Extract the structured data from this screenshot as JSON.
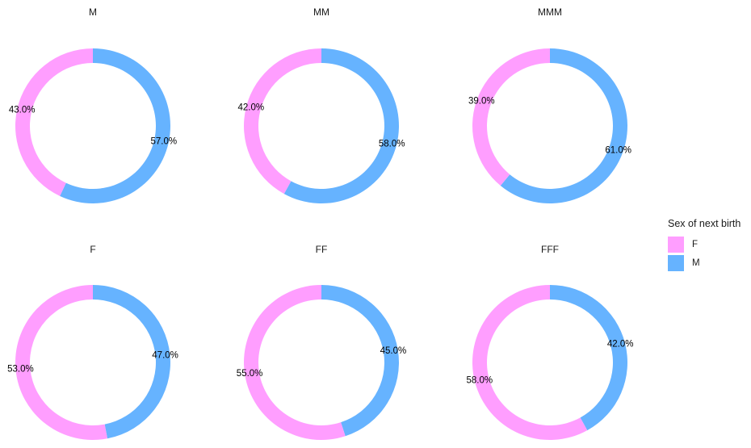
{
  "colors": {
    "F": "#FF9EFF",
    "M": "#66B3FF"
  },
  "legend": {
    "title": "Sex of next birth",
    "items": [
      {
        "key": "F",
        "label": "F"
      },
      {
        "key": "M",
        "label": "M"
      }
    ]
  },
  "chart_data": {
    "type": "pie",
    "variant": "donut",
    "legend_position": "right",
    "panels": [
      {
        "title": "M",
        "slices": [
          {
            "category": "M",
            "value": 57.0,
            "label": "57.0%"
          },
          {
            "category": "F",
            "value": 43.0,
            "label": "43.0%"
          }
        ]
      },
      {
        "title": "MM",
        "slices": [
          {
            "category": "M",
            "value": 58.0,
            "label": "58.0%"
          },
          {
            "category": "F",
            "value": 42.0,
            "label": "42.0%"
          }
        ]
      },
      {
        "title": "MMM",
        "slices": [
          {
            "category": "M",
            "value": 61.0,
            "label": "61.0%"
          },
          {
            "category": "F",
            "value": 39.0,
            "label": "39.0%"
          }
        ]
      },
      {
        "title": "F",
        "slices": [
          {
            "category": "M",
            "value": 47.0,
            "label": "47.0%"
          },
          {
            "category": "F",
            "value": 53.0,
            "label": "53.0%"
          }
        ]
      },
      {
        "title": "FF",
        "slices": [
          {
            "category": "M",
            "value": 45.0,
            "label": "45.0%"
          },
          {
            "category": "F",
            "value": 55.0,
            "label": "55.0%"
          }
        ]
      },
      {
        "title": "FFF",
        "slices": [
          {
            "category": "M",
            "value": 42.0,
            "label": "42.0%"
          },
          {
            "category": "F",
            "value": 58.0,
            "label": "58.0%"
          }
        ]
      }
    ]
  }
}
